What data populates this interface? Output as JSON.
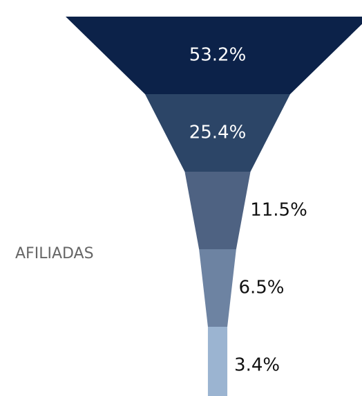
{
  "chart_data": {
    "type": "funnel",
    "label": "AFILIADAS",
    "values": [
      53.2,
      25.4,
      11.5,
      6.5,
      3.4
    ],
    "value_labels": [
      "53.2%",
      "25.4%",
      "11.5%",
      "6.5%",
      "3.4%"
    ],
    "colors": [
      "#0c2249",
      "#2c4567",
      "#4e6282",
      "#6d83a2",
      "#9bb4d1"
    ]
  }
}
